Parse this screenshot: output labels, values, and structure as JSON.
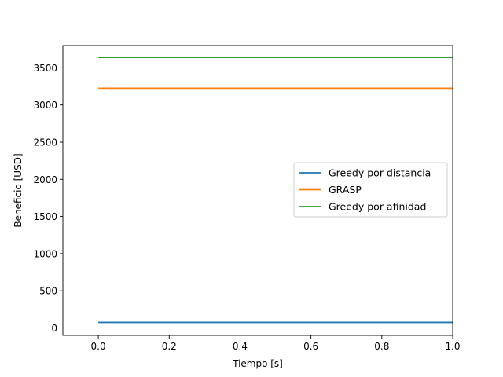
{
  "chart_data": {
    "type": "line",
    "title": "",
    "xlabel": "Tiempo [s]",
    "ylabel": "Beneficio [USD]",
    "xlim": [
      -0.1,
      1.0
    ],
    "ylim": [
      -100,
      3800
    ],
    "xticks": [
      0.0,
      0.2,
      0.4,
      0.6,
      0.8,
      1.0
    ],
    "xtick_labels": [
      "0.0",
      "0.2",
      "0.4",
      "0.6",
      "0.8",
      "1.0"
    ],
    "yticks": [
      0,
      500,
      1000,
      1500,
      2000,
      2500,
      3000,
      3500
    ],
    "ytick_labels": [
      "0",
      "500",
      "1000",
      "1500",
      "2000",
      "2500",
      "3000",
      "3500"
    ],
    "grid": false,
    "legend_position": "center-right",
    "series": [
      {
        "name": "Greedy por distancia",
        "color": "#1f77b4",
        "x": [
          0.0,
          1.0
        ],
        "y": [
          75,
          75
        ]
      },
      {
        "name": "GRASP",
        "color": "#ff7f0e",
        "x": [
          0.0,
          1.0
        ],
        "y": [
          3225,
          3225
        ]
      },
      {
        "name": "Greedy por afinidad",
        "color": "#2ca02c",
        "x": [
          0.0,
          1.0
        ],
        "y": [
          3640,
          3640
        ]
      }
    ]
  }
}
